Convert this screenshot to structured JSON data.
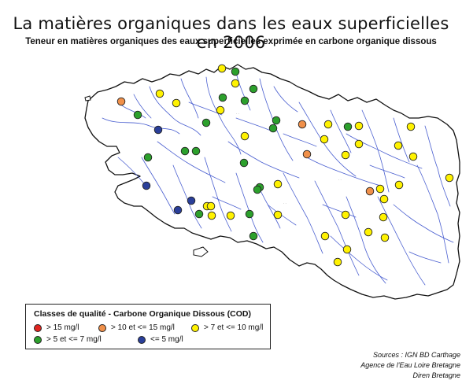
{
  "title": "La matières organiques dans les eaux superficielles en 2006",
  "subtitle": "Teneur en matières organiques des eaux superficielles exprimée en carbone organique dissous",
  "colors": {
    "red": "#e0251f",
    "orange": "#f0904a",
    "yellow": "#fff200",
    "green": "#2ca02c",
    "blue": "#2a3f9a",
    "river": "#4a5fd0",
    "coast": "#111111"
  },
  "legend": {
    "title": "Classes de qualité - Carbone Organique Dissous (COD)",
    "items": [
      {
        "color": "red",
        "label": "> 15 mg/l"
      },
      {
        "color": "orange",
        "label": "> 10 et <= 15 mg/l"
      },
      {
        "color": "yellow",
        "label": "> 7 et <= 10 mg/l"
      },
      {
        "color": "green",
        "label": "> 5 et <= 7 mg/l"
      },
      {
        "color": "blue",
        "label": "<= 5 mg/l"
      }
    ]
  },
  "sources": {
    "line1": "Sources : IGN BD Carthage",
    "line2": "Agence de l'Eau Loire Bretagne",
    "line3": "Diren Bretagne"
  }
}
